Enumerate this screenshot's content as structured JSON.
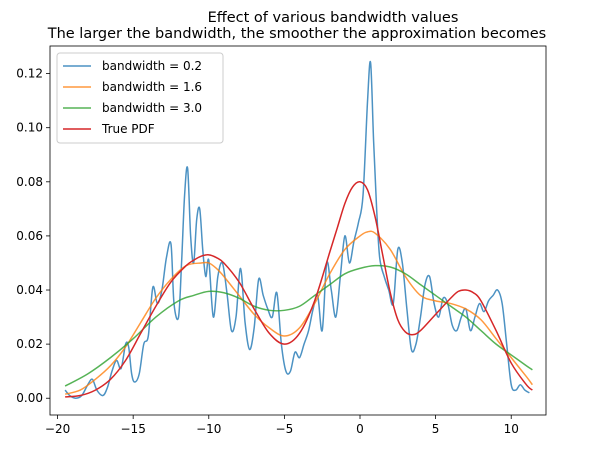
{
  "chart_data": {
    "type": "line",
    "title": "Effect of various bandwidth values",
    "subtitle": "The larger the bandwidth, the smoother the approximation becomes",
    "xlabel": "",
    "ylabel": "",
    "xlim": [
      -20.5,
      12.3
    ],
    "ylim": [
      -0.0062,
      0.1302
    ],
    "x_ticks": [
      -20,
      -15,
      -10,
      -5,
      0,
      5,
      10
    ],
    "x_tick_labels": [
      "−20",
      "−15",
      "−10",
      "−5",
      "0",
      "5",
      "10"
    ],
    "y_ticks": [
      0.0,
      0.02,
      0.04,
      0.06,
      0.08,
      0.1,
      0.12
    ],
    "y_tick_labels": [
      "0.00",
      "0.02",
      "0.04",
      "0.06",
      "0.08",
      "0.10",
      "0.12"
    ],
    "grid": false,
    "legend_position": "top-left",
    "series": [
      {
        "name": "bandwidth = 0.2",
        "color": "#1f77b4",
        "x": [
          -19.5,
          -19.2,
          -18.8,
          -18.4,
          -18.0,
          -17.7,
          -17.4,
          -17.0,
          -16.7,
          -16.4,
          -16.1,
          -15.8,
          -15.5,
          -15.3,
          -15.1,
          -14.9,
          -14.6,
          -14.3,
          -14.0,
          -13.7,
          -13.4,
          -13.1,
          -12.8,
          -12.5,
          -12.3,
          -12.0,
          -11.8,
          -11.6,
          -11.4,
          -11.2,
          -11.0,
          -10.8,
          -10.6,
          -10.4,
          -10.2,
          -10.0,
          -9.7,
          -9.4,
          -9.1,
          -8.8,
          -8.5,
          -8.2,
          -7.9,
          -7.6,
          -7.3,
          -7.0,
          -6.7,
          -6.4,
          -6.1,
          -5.8,
          -5.5,
          -5.2,
          -4.9,
          -4.6,
          -4.3,
          -4.0,
          -3.7,
          -3.4,
          -3.1,
          -2.8,
          -2.5,
          -2.2,
          -1.9,
          -1.6,
          -1.3,
          -1.0,
          -0.7,
          -0.4,
          -0.1,
          0.2,
          0.5,
          0.7,
          0.9,
          1.1,
          1.3,
          1.6,
          1.9,
          2.2,
          2.5,
          2.8,
          3.1,
          3.4,
          3.7,
          4.0,
          4.3,
          4.6,
          4.9,
          5.2,
          5.5,
          5.8,
          6.1,
          6.4,
          6.7,
          7.0,
          7.3,
          7.6,
          7.9,
          8.2,
          8.5,
          8.8,
          9.1,
          9.4,
          9.7,
          10.0,
          10.3,
          10.6,
          10.9,
          11.2
        ],
        "y": [
          0.003,
          0.001,
          0.0,
          0.001,
          0.005,
          0.007,
          0.003,
          0.001,
          0.004,
          0.01,
          0.014,
          0.011,
          0.02,
          0.019,
          0.009,
          0.006,
          0.009,
          0.02,
          0.023,
          0.041,
          0.035,
          0.04,
          0.052,
          0.057,
          0.035,
          0.03,
          0.05,
          0.075,
          0.085,
          0.06,
          0.05,
          0.066,
          0.07,
          0.055,
          0.045,
          0.051,
          0.03,
          0.045,
          0.05,
          0.039,
          0.025,
          0.03,
          0.048,
          0.028,
          0.018,
          0.026,
          0.044,
          0.038,
          0.033,
          0.03,
          0.039,
          0.02,
          0.01,
          0.01,
          0.017,
          0.015,
          0.02,
          0.025,
          0.033,
          0.038,
          0.025,
          0.05,
          0.04,
          0.03,
          0.045,
          0.06,
          0.05,
          0.058,
          0.065,
          0.075,
          0.11,
          0.124,
          0.095,
          0.07,
          0.052,
          0.045,
          0.04,
          0.035,
          0.055,
          0.05,
          0.033,
          0.018,
          0.02,
          0.03,
          0.042,
          0.045,
          0.035,
          0.03,
          0.037,
          0.035,
          0.027,
          0.025,
          0.03,
          0.033,
          0.025,
          0.03,
          0.035,
          0.032,
          0.036,
          0.038,
          0.04,
          0.035,
          0.02,
          0.005,
          0.003,
          0.005,
          0.003,
          0.002
        ]
      },
      {
        "name": "bandwidth = 1.6",
        "color": "#ff7f0e",
        "x": [
          -19.5,
          -18.5,
          -17.5,
          -16.5,
          -15.5,
          -14.5,
          -13.5,
          -12.5,
          -11.5,
          -10.5,
          -10.0,
          -9.5,
          -9.0,
          -8.0,
          -7.0,
          -6.0,
          -5.0,
          -4.0,
          -3.0,
          -2.0,
          -1.0,
          0.0,
          0.5,
          1.0,
          2.0,
          3.0,
          4.0,
          5.0,
          6.0,
          7.0,
          8.0,
          9.0,
          10.0,
          11.0,
          11.4
        ],
        "y": [
          0.0015,
          0.003,
          0.007,
          0.012,
          0.019,
          0.028,
          0.037,
          0.044,
          0.049,
          0.05,
          0.05,
          0.048,
          0.045,
          0.038,
          0.031,
          0.026,
          0.023,
          0.026,
          0.035,
          0.046,
          0.055,
          0.06,
          0.0615,
          0.061,
          0.055,
          0.045,
          0.038,
          0.036,
          0.035,
          0.033,
          0.029,
          0.022,
          0.015,
          0.008,
          0.005
        ]
      },
      {
        "name": "bandwidth = 3.0",
        "color": "#2ca02c",
        "x": [
          -19.5,
          -18.0,
          -16.5,
          -15.0,
          -13.5,
          -12.0,
          -11.0,
          -10.0,
          -9.0,
          -8.0,
          -7.0,
          -6.0,
          -5.0,
          -4.0,
          -3.0,
          -2.0,
          -1.0,
          0.0,
          1.0,
          2.0,
          3.0,
          4.0,
          5.0,
          6.0,
          7.0,
          8.0,
          9.0,
          10.0,
          11.0,
          11.4
        ],
        "y": [
          0.0045,
          0.009,
          0.015,
          0.022,
          0.03,
          0.036,
          0.038,
          0.0395,
          0.039,
          0.037,
          0.034,
          0.0325,
          0.0325,
          0.034,
          0.038,
          0.042,
          0.046,
          0.048,
          0.049,
          0.0485,
          0.046,
          0.042,
          0.038,
          0.034,
          0.03,
          0.025,
          0.02,
          0.016,
          0.012,
          0.0105
        ]
      },
      {
        "name": "True PDF",
        "color": "#d62728",
        "x": [
          -19.5,
          -18.5,
          -17.5,
          -16.5,
          -15.5,
          -14.5,
          -13.5,
          -12.5,
          -11.5,
          -11.0,
          -10.5,
          -10.0,
          -9.5,
          -9.0,
          -8.0,
          -7.0,
          -6.0,
          -5.0,
          -4.0,
          -3.0,
          -2.0,
          -1.5,
          -1.0,
          -0.5,
          0.0,
          0.5,
          1.0,
          1.5,
          2.0,
          2.5,
          3.0,
          3.5,
          4.0,
          5.0,
          6.0,
          6.5,
          7.0,
          7.5,
          8.0,
          9.0,
          10.0,
          11.0,
          11.4
        ],
        "y": [
          0.0005,
          0.001,
          0.003,
          0.007,
          0.014,
          0.024,
          0.034,
          0.043,
          0.049,
          0.051,
          0.0525,
          0.053,
          0.052,
          0.05,
          0.043,
          0.033,
          0.024,
          0.02,
          0.024,
          0.036,
          0.054,
          0.063,
          0.072,
          0.078,
          0.08,
          0.077,
          0.067,
          0.053,
          0.039,
          0.029,
          0.0245,
          0.0235,
          0.025,
          0.031,
          0.037,
          0.0395,
          0.04,
          0.039,
          0.036,
          0.025,
          0.013,
          0.005,
          0.003
        ]
      }
    ]
  }
}
